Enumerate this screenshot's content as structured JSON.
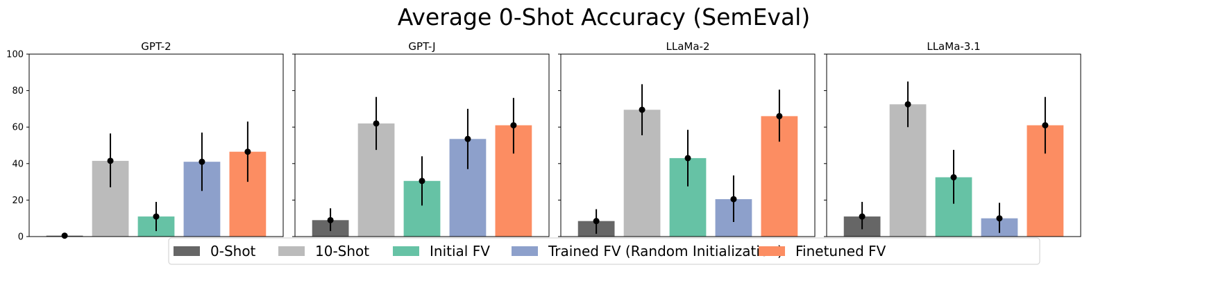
{
  "chart_data": {
    "type": "bar",
    "title": "Average 0-Shot Accuracy (SemEval)",
    "ylim": [
      0,
      100
    ],
    "yticks": [
      0,
      20,
      40,
      60,
      80,
      100
    ],
    "xlabel": "",
    "ylabel": "",
    "legend_position": "bottom-center",
    "series_names": [
      "0-Shot",
      "10-Shot",
      "Initial FV",
      "Trained FV (Random Initialization)",
      "Finetuned FV"
    ],
    "series_colors": [
      "#666666",
      "#bbbbbb",
      "#66c2a5",
      "#8da0cb",
      "#fc8d62"
    ],
    "panels": [
      {
        "title": "GPT-2",
        "values": [
          0.5,
          41.5,
          11,
          41,
          46.5
        ],
        "errors": [
          [
            0.2,
            0.8
          ],
          [
            27,
            56.5
          ],
          [
            3,
            19
          ],
          [
            25,
            57
          ],
          [
            30,
            63
          ]
        ]
      },
      {
        "title": "GPT-J",
        "values": [
          9,
          62,
          30.5,
          53.5,
          61
        ],
        "errors": [
          [
            3,
            15.5
          ],
          [
            47.5,
            76.5
          ],
          [
            17,
            44
          ],
          [
            37,
            70
          ],
          [
            45.5,
            76
          ]
        ]
      },
      {
        "title": "LLaMa-2",
        "values": [
          8.5,
          69.5,
          43,
          20.5,
          66
        ],
        "errors": [
          [
            1.5,
            15
          ],
          [
            55.5,
            83.5
          ],
          [
            27.5,
            58.5
          ],
          [
            8,
            33.5
          ],
          [
            52,
            80.5
          ]
        ]
      },
      {
        "title": "LLaMa-3.1",
        "values": [
          11,
          72.5,
          32.5,
          10,
          61
        ],
        "errors": [
          [
            4,
            19
          ],
          [
            60,
            85
          ],
          [
            18,
            47.5
          ],
          [
            2,
            18.5
          ],
          [
            45.5,
            76.5
          ]
        ]
      }
    ]
  }
}
